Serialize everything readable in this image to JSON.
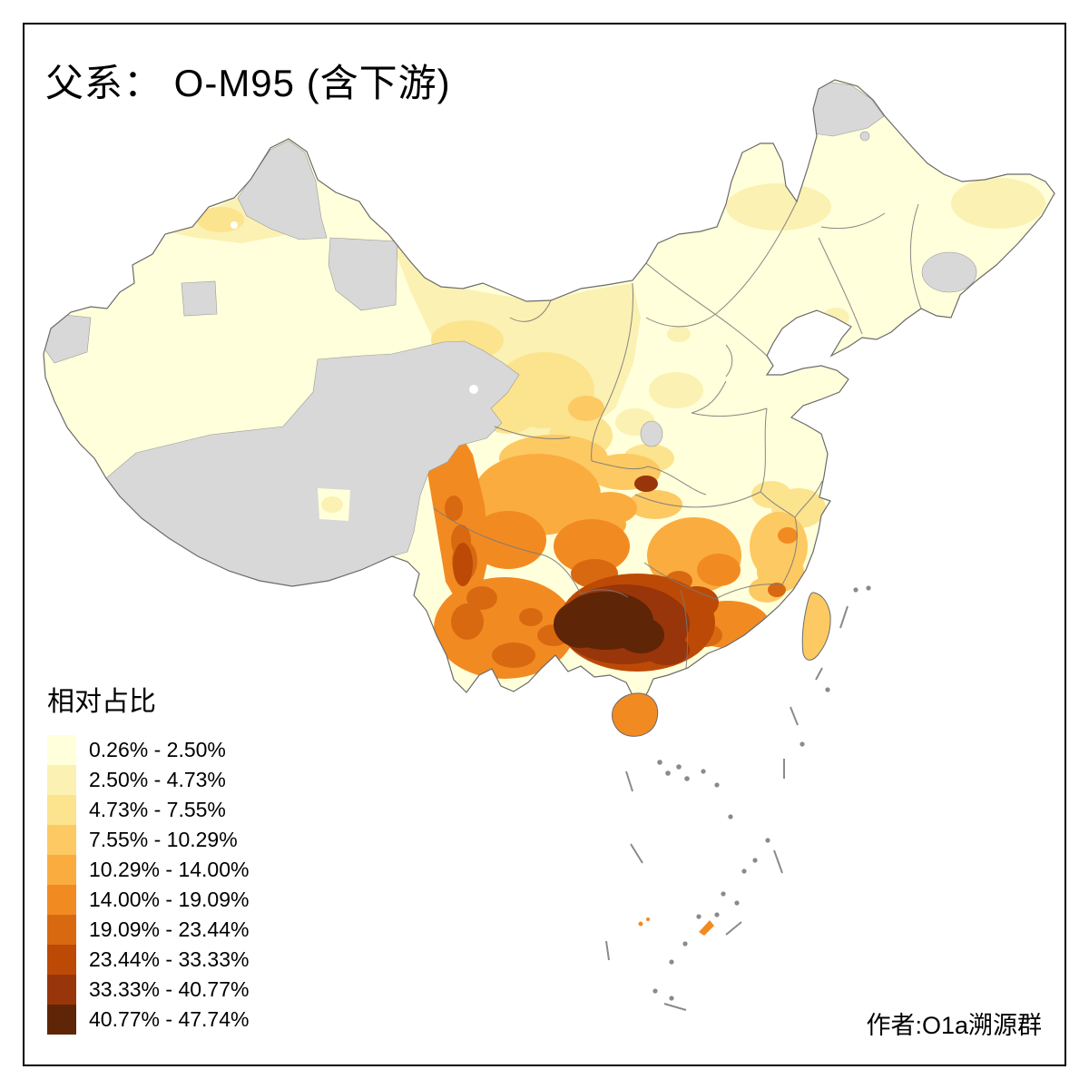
{
  "title": {
    "text": "父系： O-M95 (含下游)"
  },
  "legend": {
    "title": "相对占比",
    "classes": [
      {
        "label": "0.26% - 2.50%",
        "color": "#FFFFDB"
      },
      {
        "label": "2.50% - 4.73%",
        "color": "#FBF1B3"
      },
      {
        "label": "4.73% - 7.55%",
        "color": "#FCE38E"
      },
      {
        "label": "7.55% - 10.29%",
        "color": "#FDC963"
      },
      {
        "label": "10.29% - 14.00%",
        "color": "#FBAC3F"
      },
      {
        "label": "14.00% - 19.09%",
        "color": "#F28A22"
      },
      {
        "label": "19.09% - 23.44%",
        "color": "#D96910"
      },
      {
        "label": "23.44% - 33.33%",
        "color": "#BC4A06"
      },
      {
        "label": "33.33% - 40.77%",
        "color": "#98350A"
      },
      {
        "label": "40.77% - 47.74%",
        "color": "#5E2507"
      }
    ]
  },
  "credit": {
    "text": "作者:O1a溯源群"
  },
  "map": {
    "no_data_color": "#D8D8D8",
    "sea_color": "#FFFFFF",
    "outline_color": "#6B6B6B",
    "province_border_color": "#7A7A7A",
    "island_speck_color": "#8A8A8A",
    "frame_border_color": "#000000"
  }
}
